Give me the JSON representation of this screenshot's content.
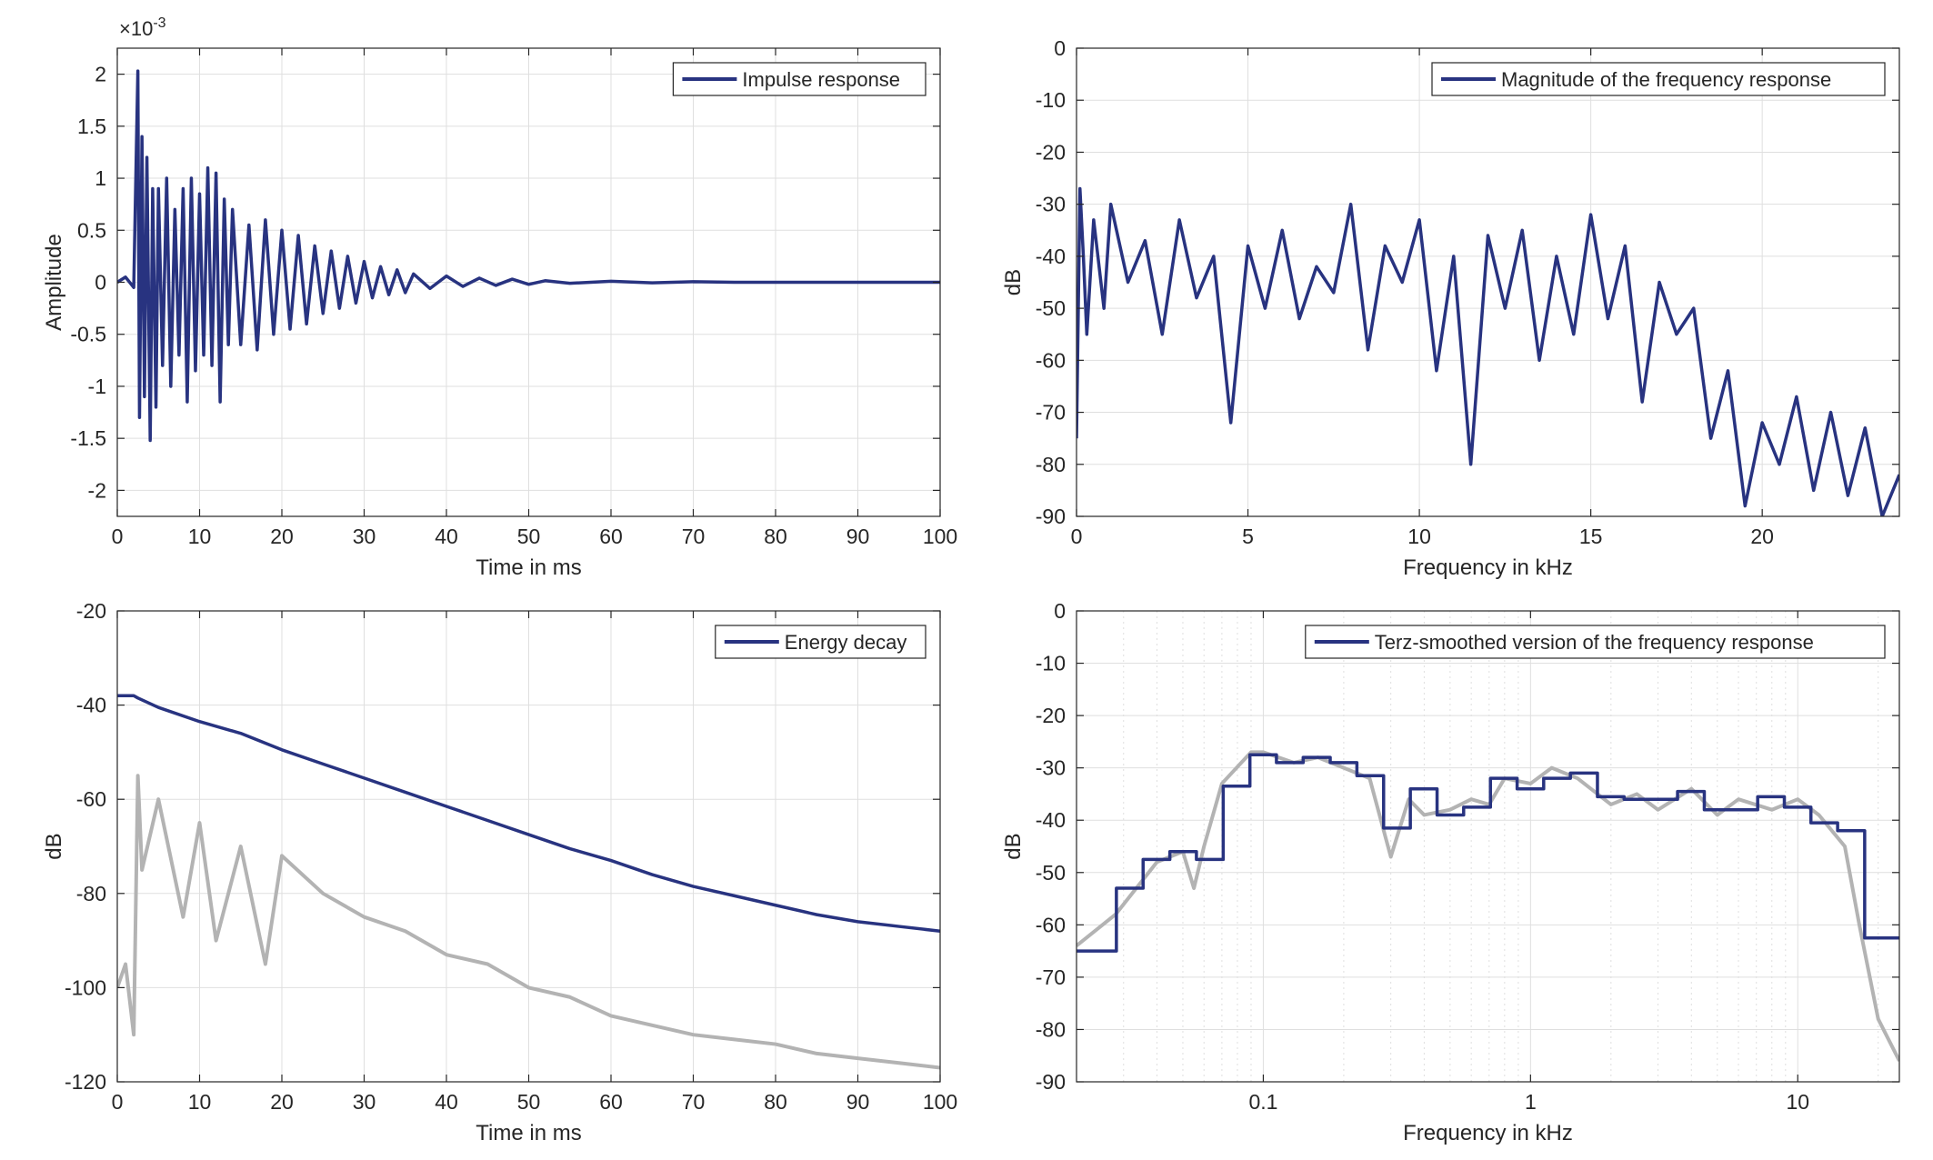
{
  "colors": {
    "series": "#283380",
    "gray": "#b3b3b3",
    "axes": "#262626",
    "grid": "#dfdfdf",
    "background": "#ffffff"
  },
  "chart_data": [
    {
      "type": "line",
      "id": "impulse",
      "title": "",
      "xlabel": "Time in ms",
      "ylabel": "Amplitude",
      "exponent_label": "×10",
      "exponent_power": "-3",
      "xlim": [
        0,
        100
      ],
      "ylim": [
        -2.25,
        2.25
      ],
      "xscale": "linear",
      "xticks": [
        0,
        10,
        20,
        30,
        40,
        50,
        60,
        70,
        80,
        90,
        100
      ],
      "xticklabels": [
        "0",
        "10",
        "20",
        "30",
        "40",
        "50",
        "60",
        "70",
        "80",
        "90",
        "100"
      ],
      "yticks": [
        -2,
        -1.5,
        -1,
        -0.5,
        0,
        0.5,
        1,
        1.5,
        2
      ],
      "yticklabels": [
        "-2",
        "-1.5",
        "-1",
        "-0.5",
        "0",
        "0.5",
        "1",
        "1.5",
        "2"
      ],
      "grid": true,
      "legend": {
        "location": "top-right",
        "entries": [
          "Impulse response"
        ]
      },
      "series": [
        {
          "name": "Impulse response",
          "color": "#283380",
          "x": [
            0,
            1,
            2,
            2.3,
            2.5,
            2.7,
            3,
            3.3,
            3.6,
            4,
            4.3,
            4.7,
            5,
            5.5,
            6,
            6.5,
            7,
            7.5,
            8,
            8.5,
            9,
            9.5,
            10,
            10.5,
            11,
            11.5,
            12,
            12.5,
            13,
            13.5,
            14,
            15,
            16,
            17,
            18,
            19,
            20,
            21,
            22,
            23,
            24,
            25,
            26,
            27,
            28,
            29,
            30,
            31,
            32,
            33,
            34,
            35,
            36,
            38,
            40,
            42,
            44,
            46,
            48,
            50,
            52,
            55,
            60,
            65,
            70,
            75,
            80,
            85,
            90,
            95,
            100
          ],
          "y": [
            0,
            0.05,
            -0.05,
            1.2,
            2.03,
            -1.3,
            1.4,
            -1.1,
            1.2,
            -1.52,
            0.9,
            -1.2,
            0.9,
            -0.8,
            1.0,
            -1.0,
            0.7,
            -0.7,
            0.9,
            -1.15,
            1.0,
            -0.85,
            0.85,
            -0.7,
            1.1,
            -0.8,
            1.05,
            -1.15,
            0.8,
            -0.6,
            0.7,
            -0.6,
            0.55,
            -0.65,
            0.6,
            -0.5,
            0.5,
            -0.45,
            0.45,
            -0.4,
            0.35,
            -0.3,
            0.3,
            -0.25,
            0.25,
            -0.2,
            0.2,
            -0.15,
            0.15,
            -0.12,
            0.12,
            -0.1,
            0.08,
            -0.06,
            0.06,
            -0.04,
            0.04,
            -0.03,
            0.03,
            -0.02,
            0.015,
            -0.01,
            0.01,
            -0.005,
            0.005,
            0,
            0,
            0,
            0,
            0,
            0
          ]
        }
      ]
    },
    {
      "type": "line",
      "id": "magnitude",
      "title": "",
      "xlabel": "Frequency in kHz",
      "ylabel": "dB",
      "xlim": [
        0,
        24
      ],
      "ylim": [
        -90,
        0
      ],
      "xscale": "linear",
      "xticks": [
        0,
        5,
        10,
        15,
        20
      ],
      "xticklabels": [
        "0",
        "5",
        "10",
        "15",
        "20"
      ],
      "yticks": [
        0,
        -10,
        -20,
        -30,
        -40,
        -50,
        -60,
        -70,
        -80,
        -90
      ],
      "yticklabels": [
        "0",
        "-10",
        "-20",
        "-30",
        "-40",
        "-50",
        "-60",
        "-70",
        "-80",
        "-90"
      ],
      "grid": true,
      "legend": {
        "location": "top-right",
        "entries": [
          "Magnitude of the frequency response"
        ]
      },
      "series": [
        {
          "name": "Magnitude of the frequency response",
          "color": "#283380",
          "x": [
            0,
            0.1,
            0.2,
            0.3,
            0.5,
            0.8,
            1,
            1.5,
            2,
            2.5,
            3,
            3.5,
            4,
            4.5,
            5,
            5.5,
            6,
            6.5,
            7,
            7.5,
            8,
            8.5,
            9,
            9.5,
            10,
            10.5,
            11,
            11.5,
            12,
            12.5,
            13,
            13.5,
            14,
            14.5,
            15,
            15.5,
            16,
            16.5,
            17,
            17.5,
            18,
            18.5,
            19,
            19.5,
            20,
            20.5,
            21,
            21.5,
            22,
            22.5,
            23,
            23.5,
            24
          ],
          "y": [
            -75,
            -27,
            -40,
            -55,
            -33,
            -50,
            -30,
            -45,
            -37,
            -55,
            -33,
            -48,
            -40,
            -72,
            -38,
            -50,
            -35,
            -52,
            -42,
            -47,
            -30,
            -58,
            -38,
            -45,
            -33,
            -62,
            -40,
            -80,
            -36,
            -50,
            -35,
            -60,
            -40,
            -55,
            -32,
            -52,
            -38,
            -68,
            -45,
            -55,
            -50,
            -75,
            -62,
            -88,
            -72,
            -80,
            -67,
            -85,
            -70,
            -86,
            -73,
            -90,
            -82
          ]
        }
      ]
    },
    {
      "type": "line",
      "id": "energy",
      "title": "",
      "xlabel": "Time in ms",
      "ylabel": "dB",
      "xlim": [
        0,
        100
      ],
      "ylim": [
        -120,
        -20
      ],
      "xscale": "linear",
      "xticks": [
        0,
        10,
        20,
        30,
        40,
        50,
        60,
        70,
        80,
        90,
        100
      ],
      "xticklabels": [
        "0",
        "10",
        "20",
        "30",
        "40",
        "50",
        "60",
        "70",
        "80",
        "90",
        "100"
      ],
      "yticks": [
        -20,
        -40,
        -60,
        -80,
        -100,
        -120
      ],
      "yticklabels": [
        "-20",
        "-40",
        "-60",
        "-80",
        "-100",
        "-120"
      ],
      "grid": true,
      "legend": {
        "location": "top-right",
        "entries": [
          "Energy decay"
        ]
      },
      "series": [
        {
          "name": "Energy decay",
          "color": "#283380",
          "x": [
            0,
            2,
            2.5,
            5,
            10,
            15,
            20,
            25,
            30,
            35,
            40,
            45,
            50,
            55,
            60,
            65,
            70,
            75,
            80,
            85,
            90,
            95,
            100
          ],
          "y": [
            -38,
            -38,
            -38.5,
            -40.5,
            -43.5,
            -46,
            -49.5,
            -52.5,
            -55.5,
            -58.5,
            -61.5,
            -64.5,
            -67.5,
            -70.5,
            -73,
            -76,
            -78.5,
            -80.5,
            -82.5,
            -84.5,
            -86,
            -87,
            -88
          ]
        },
        {
          "color": "#b3b3b3",
          "x": [
            0,
            1,
            2,
            2.5,
            3,
            5,
            8,
            10,
            12,
            15,
            18,
            20,
            25,
            30,
            35,
            40,
            45,
            50,
            55,
            60,
            65,
            70,
            75,
            80,
            85,
            90,
            95,
            100
          ],
          "y": [
            -100,
            -95,
            -110,
            -55,
            -75,
            -60,
            -85,
            -65,
            -90,
            -70,
            -95,
            -72,
            -80,
            -85,
            -88,
            -93,
            -95,
            -100,
            -102,
            -106,
            -108,
            -110,
            -111,
            -112,
            -114,
            -115,
            -116,
            -117
          ]
        }
      ]
    },
    {
      "type": "line",
      "id": "terz",
      "title": "",
      "xlabel": "Frequency in kHz",
      "ylabel": "dB",
      "xlim": [
        0.02,
        24
      ],
      "ylim": [
        -90,
        0
      ],
      "xscale": "log",
      "xticks": [
        0.1,
        1,
        10
      ],
      "xticklabels": [
        "0.1",
        "1",
        "10"
      ],
      "yticks": [
        0,
        -10,
        -20,
        -30,
        -40,
        -50,
        -60,
        -70,
        -80,
        -90
      ],
      "yticklabels": [
        "0",
        "-10",
        "-20",
        "-30",
        "-40",
        "-50",
        "-60",
        "-70",
        "-80",
        "-90"
      ],
      "grid": true,
      "legend": {
        "location": "top-right",
        "entries": [
          "Terz-smoothed version of the frequency response"
        ]
      },
      "series": [
        {
          "name": "Terz-smoothed version of the frequency response",
          "color": "#283380",
          "step": true,
          "x": [
            0.02,
            0.0282,
            0.0355,
            0.0447,
            0.0562,
            0.0708,
            0.0891,
            0.112,
            0.141,
            0.178,
            0.224,
            0.282,
            0.355,
            0.447,
            0.562,
            0.708,
            0.891,
            1.12,
            1.41,
            1.78,
            2.24,
            2.82,
            3.55,
            4.47,
            5.62,
            7.08,
            8.91,
            11.2,
            14.1,
            17.8,
            24
          ],
          "y": [
            -65,
            -53,
            -47.5,
            -46,
            -47.5,
            -33.5,
            -27.5,
            -29,
            -28,
            -29,
            -31.5,
            -41.5,
            -34,
            -39,
            -37.5,
            -32,
            -34,
            -32,
            -31,
            -35.5,
            -36,
            -36,
            -34.5,
            -38,
            -38,
            -35.5,
            -37.5,
            -40.5,
            -42,
            -62.5,
            -62.5
          ]
        },
        {
          "color": "#b3b3b3",
          "x": [
            0.02,
            0.028,
            0.04,
            0.05,
            0.055,
            0.06,
            0.07,
            0.09,
            0.1,
            0.13,
            0.16,
            0.2,
            0.25,
            0.3,
            0.35,
            0.4,
            0.5,
            0.6,
            0.7,
            0.8,
            1,
            1.2,
            1.5,
            2,
            2.5,
            3,
            4,
            5,
            6,
            8,
            10,
            12,
            15,
            17,
            20,
            24
          ],
          "y": [
            -64,
            -58,
            -48,
            -46,
            -53,
            -45,
            -33,
            -27,
            -27,
            -29,
            -28,
            -30,
            -32,
            -47,
            -36,
            -39,
            -38,
            -36,
            -37,
            -32,
            -33,
            -30,
            -32,
            -37,
            -35,
            -38,
            -34,
            -39,
            -36,
            -38,
            -36,
            -39,
            -45,
            -60,
            -78,
            -86
          ]
        }
      ]
    }
  ]
}
